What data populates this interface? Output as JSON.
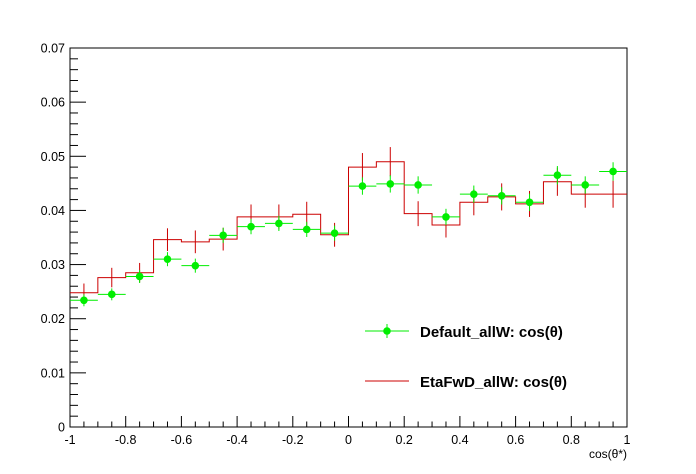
{
  "chart_data": {
    "type": "line",
    "title": "",
    "xlabel": "cos(θ*)",
    "ylabel": "",
    "xlim": [
      -1,
      1
    ],
    "ylim": [
      0,
      0.07
    ],
    "grid": false,
    "legend_position": "bottom-right",
    "x_ticks": [
      -1,
      -0.8,
      -0.6,
      -0.4,
      -0.2,
      0,
      0.2,
      0.4,
      0.6,
      0.8,
      1
    ],
    "x_tick_labels": [
      "-1",
      "-0.8",
      "-0.6",
      "-0.4",
      "-0.2",
      "0",
      "0.2",
      "0.4",
      "0.6",
      "0.8",
      "1"
    ],
    "y_ticks": [
      0,
      0.01,
      0.02,
      0.03,
      0.04,
      0.05,
      0.06,
      0.07
    ],
    "y_tick_labels": [
      "0",
      "0.01",
      "0.02",
      "0.03",
      "0.04",
      "0.05",
      "0.06",
      "0.07"
    ],
    "bin_edges": [
      -1,
      -0.9,
      -0.8,
      -0.7,
      -0.6,
      -0.5,
      -0.4,
      -0.3,
      -0.2,
      -0.1,
      0,
      0.1,
      0.2,
      0.3,
      0.4,
      0.5,
      0.6,
      0.7,
      0.8,
      0.9,
      1
    ],
    "series": [
      {
        "name": "Default_allW: cos(θ)",
        "style": "markers",
        "color": "#00ee00",
        "x": [
          -0.95,
          -0.85,
          -0.75,
          -0.65,
          -0.55,
          -0.45,
          -0.35,
          -0.25,
          -0.15,
          -0.05,
          0.05,
          0.15,
          0.25,
          0.35,
          0.45,
          0.55,
          0.65,
          0.75,
          0.85,
          0.95
        ],
        "values": [
          0.0234,
          0.0245,
          0.0278,
          0.031,
          0.0298,
          0.0354,
          0.037,
          0.0376,
          0.0365,
          0.0358,
          0.0445,
          0.0449,
          0.0447,
          0.0388,
          0.043,
          0.0427,
          0.0415,
          0.0465,
          0.0447,
          0.0472
        ],
        "errors": [
          0.0011,
          0.0011,
          0.0012,
          0.0013,
          0.0013,
          0.0014,
          0.0014,
          0.0014,
          0.0014,
          0.0014,
          0.0016,
          0.0016,
          0.0016,
          0.0015,
          0.0016,
          0.0016,
          0.0016,
          0.0017,
          0.0016,
          0.0017
        ]
      },
      {
        "name": "EtaFwD_allW: cos(θ)",
        "style": "histogram",
        "color": "#cc0000",
        "values": [
          0.0248,
          0.0276,
          0.0285,
          0.0346,
          0.0342,
          0.0347,
          0.0388,
          0.0388,
          0.0393,
          0.0355,
          0.048,
          0.049,
          0.0394,
          0.0373,
          0.0415,
          0.0425,
          0.0412,
          0.0453,
          0.043,
          0.043
        ],
        "errors": [
          0.0017,
          0.0018,
          0.0018,
          0.0021,
          0.0021,
          0.0021,
          0.0023,
          0.0023,
          0.0023,
          0.0022,
          0.0026,
          0.0027,
          0.0023,
          0.0023,
          0.0024,
          0.0025,
          0.0024,
          0.0026,
          0.0025,
          0.0025
        ]
      }
    ]
  }
}
